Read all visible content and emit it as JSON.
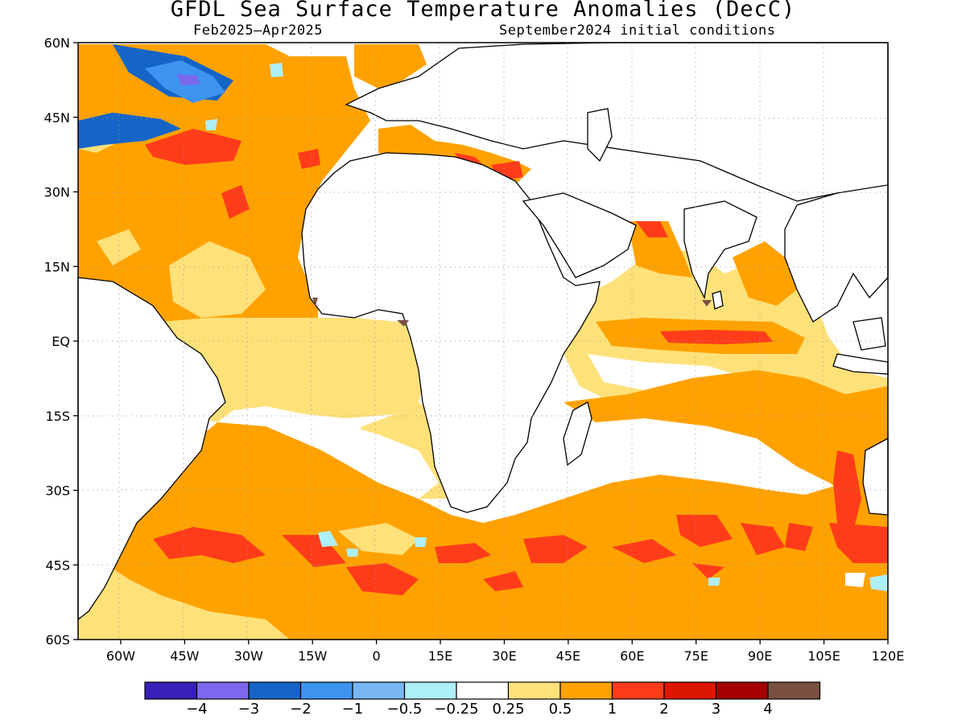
{
  "header": {
    "title": "GFDL Sea Surface Temperature Anomalies (DecC)",
    "period": "Feb2025–Apr2025",
    "initial_conditions": "September2024 initial conditions"
  },
  "map": {
    "lat_labels": [
      "60N",
      "45N",
      "30N",
      "15N",
      "EQ",
      "15S",
      "30S",
      "45S",
      "60S"
    ],
    "lat_values": [
      60,
      45,
      30,
      15,
      0,
      -15,
      -30,
      -45,
      -60
    ],
    "lon_labels": [
      "60W",
      "45W",
      "30W",
      "15W",
      "0",
      "15E",
      "30E",
      "45E",
      "60E",
      "75E",
      "90E",
      "105E",
      "120E"
    ],
    "lon_values": [
      -60,
      -45,
      -30,
      -15,
      0,
      15,
      30,
      45,
      60,
      75,
      90,
      105,
      120
    ]
  },
  "colorbar": {
    "colors": [
      "#3a1fb8",
      "#7b68ee",
      "#1565c8",
      "#3d94f0",
      "#78b7f3",
      "#aef0f8",
      "#ffffff",
      "#ffe17a",
      "#ffa200",
      "#ff3c1a",
      "#dd1600",
      "#a50000",
      "#7a5043"
    ],
    "labels": [
      "−4",
      "−3",
      "−2",
      "−1",
      "−0.5",
      "−0.25",
      "0.25",
      "0.5",
      "1",
      "2",
      "3",
      "4"
    ]
  },
  "legend_colors": {
    "white": "#ffffff",
    "light_yellow": "#ffe17a",
    "orange": "#ffa200",
    "red_orange": "#ff3c1a",
    "light_blue": "#aef0f8",
    "blue": "#1565c8",
    "brown": "#7a5043"
  }
}
